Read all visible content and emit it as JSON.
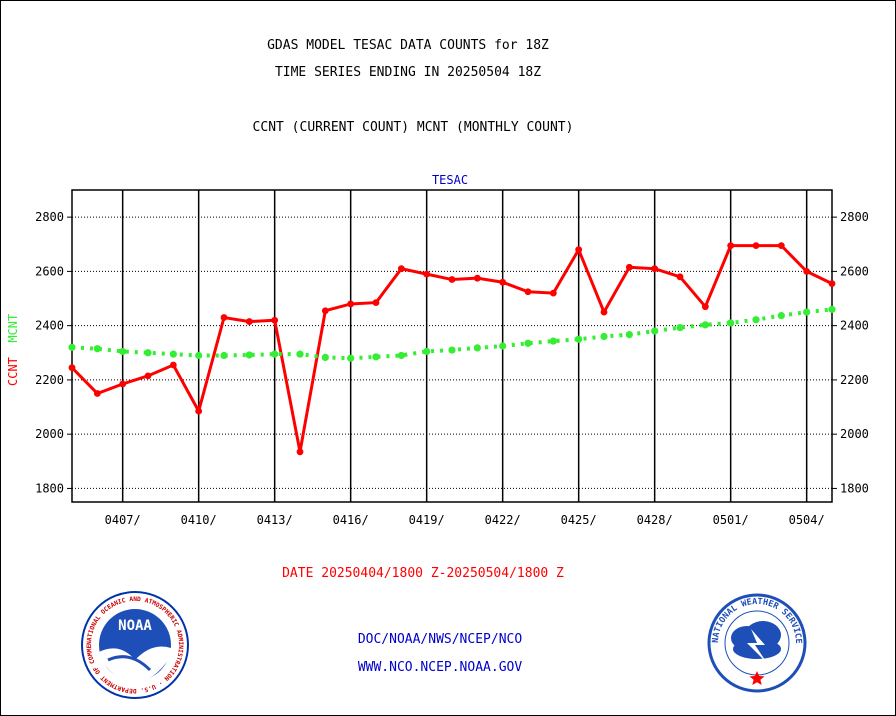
{
  "header": {
    "title_line1": "GDAS MODEL TESAC DATA COUNTS for 18Z",
    "title_line2": "TIME SERIES ENDING IN 20250504 18Z",
    "subtitle": "CCNT (CURRENT COUNT) MCNT (MONTHLY COUNT)"
  },
  "footer": {
    "date_range": "DATE 20250404/1800 Z-20250504/1800 Z",
    "credit_line1": "DOC/NOAA/NWS/NCEP/NCO",
    "credit_line2": "WWW.NCO.NCEP.NOAA.GOV",
    "left_logo_text": "NOAA",
    "left_logo_ring": "NATIONAL OCEANIC AND ATMOSPHERIC ADMINISTRATION · U.S. DEPARTMENT OF COMMERCE",
    "right_logo_ring": "NATIONAL WEATHER SERVICE"
  },
  "colors": {
    "ccnt": "#ff0000",
    "mcnt": "#33ee33",
    "credit": "#0000cc",
    "title": "#000000"
  },
  "chart_data": {
    "type": "line",
    "title": "TESAC",
    "ylabel_ccnt": "CCNT",
    "ylabel_mcnt": "MCNT",
    "ylim": [
      1750,
      2900
    ],
    "xlim": [
      0,
      30
    ],
    "yticks": [
      1800,
      2000,
      2200,
      2400,
      2600,
      2800
    ],
    "xticks": [
      {
        "x": 2,
        "label": "0407/"
      },
      {
        "x": 5,
        "label": "0410/"
      },
      {
        "x": 8,
        "label": "0413/"
      },
      {
        "x": 11,
        "label": "0416/"
      },
      {
        "x": 14,
        "label": "0419/"
      },
      {
        "x": 17,
        "label": "0422/"
      },
      {
        "x": 20,
        "label": "0425/"
      },
      {
        "x": 23,
        "label": "0428/"
      },
      {
        "x": 26,
        "label": "0501/"
      },
      {
        "x": 29,
        "label": "0504/"
      }
    ],
    "grid": true,
    "series": [
      {
        "name": "CCNT",
        "x": [
          0,
          1,
          2,
          3,
          4,
          5,
          6,
          7,
          8,
          9,
          10,
          11,
          12,
          13,
          14,
          15,
          16,
          17,
          18,
          19,
          20,
          21,
          22,
          23,
          24,
          25,
          26,
          27,
          28,
          29,
          30
        ],
        "values": [
          2245,
          2150,
          2185,
          2215,
          2255,
          2085,
          2430,
          2415,
          2420,
          1935,
          2455,
          2480,
          2485,
          2610,
          2590,
          2570,
          2575,
          2560,
          2525,
          2520,
          2680,
          2450,
          2615,
          2610,
          2580,
          2470,
          2695,
          2695,
          2695,
          2600,
          2555
        ]
      },
      {
        "name": "MCNT",
        "x": [
          0,
          1,
          2,
          3,
          4,
          5,
          6,
          7,
          8,
          9,
          10,
          11,
          12,
          13,
          14,
          15,
          16,
          17,
          18,
          19,
          20,
          21,
          22,
          23,
          24,
          25,
          26,
          27,
          28,
          29,
          30
        ],
        "values": [
          2320,
          2315,
          2305,
          2300,
          2295,
          2290,
          2290,
          2292,
          2295,
          2295,
          2283,
          2280,
          2285,
          2290,
          2305,
          2310,
          2318,
          2325,
          2335,
          2343,
          2350,
          2360,
          2367,
          2380,
          2393,
          2403,
          2410,
          2422,
          2437,
          2450,
          2460
        ]
      }
    ]
  }
}
